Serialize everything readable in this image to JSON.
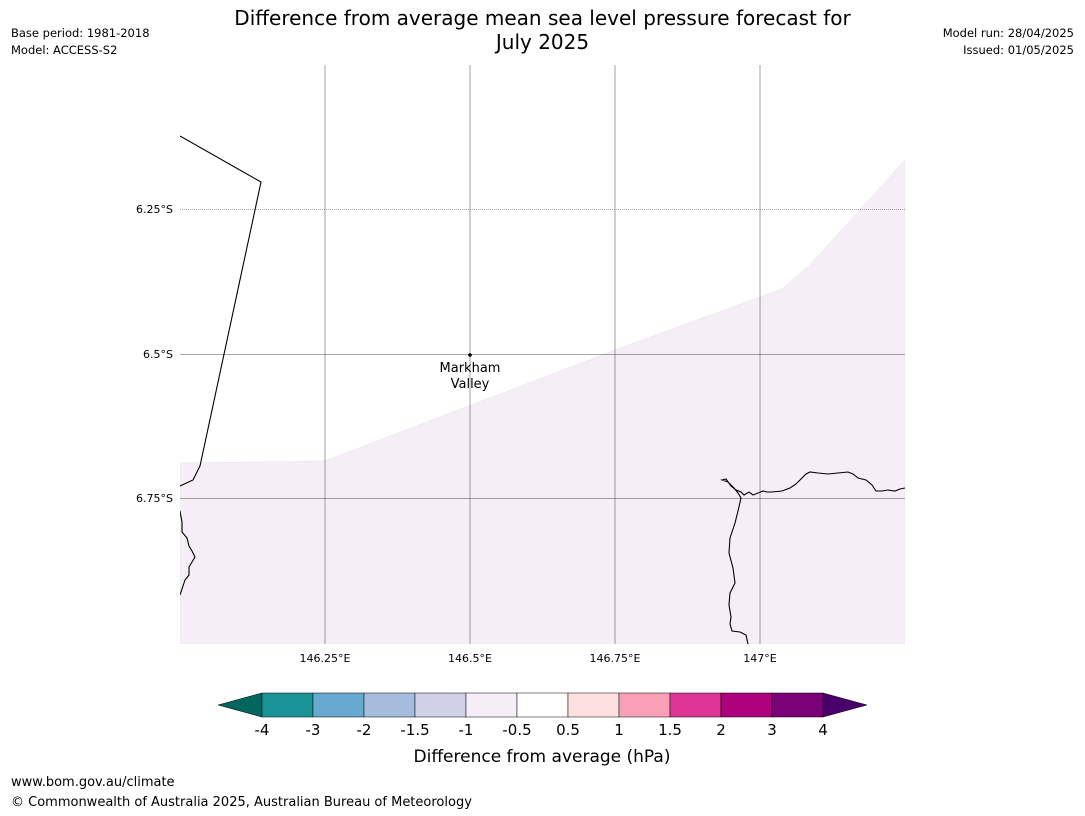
{
  "title": {
    "line1": "Difference from average mean sea level pressure forecast for",
    "line2": "July 2025"
  },
  "meta_left": {
    "base_period": "Base period: 1981-2018",
    "model": "Model: ACCESS-S2"
  },
  "meta_right": {
    "model_run": "Model run: 28/04/2025",
    "issued": "Issued: 01/05/2025"
  },
  "map": {
    "lat_labels": [
      "6.25°S",
      "6.5°S",
      "6.75°S"
    ],
    "lon_labels": [
      "146.25°E",
      "146.5°E",
      "146.75°E",
      "147°E"
    ],
    "place": {
      "name_line1": "Markham",
      "name_line2": "Valley"
    },
    "region_color": "#f5eef6",
    "region_value_range": [
      -1,
      -0.5
    ]
  },
  "colorbar": {
    "label": "Difference from average (hPa)",
    "ticks": [
      "-4",
      "-3",
      "-2",
      "-1.5",
      "-1",
      "-0.5",
      "0.5",
      "1",
      "1.5",
      "2",
      "3",
      "4"
    ],
    "colors": [
      "#1a9396",
      "#66a8d0",
      "#a6bcdd",
      "#d0d0e6",
      "#f5eef6",
      "#ffffff",
      "#fee0e0",
      "#f9a0b8",
      "#dc3596",
      "#ad017e",
      "#7a0177"
    ],
    "low_extend_color": "#01665e",
    "high_extend_color": "#49006a"
  },
  "footer": {
    "url": "www.bom.gov.au/climate",
    "copyright": "© Commonwealth of Australia 2025, Australian Bureau of Meteorology"
  }
}
